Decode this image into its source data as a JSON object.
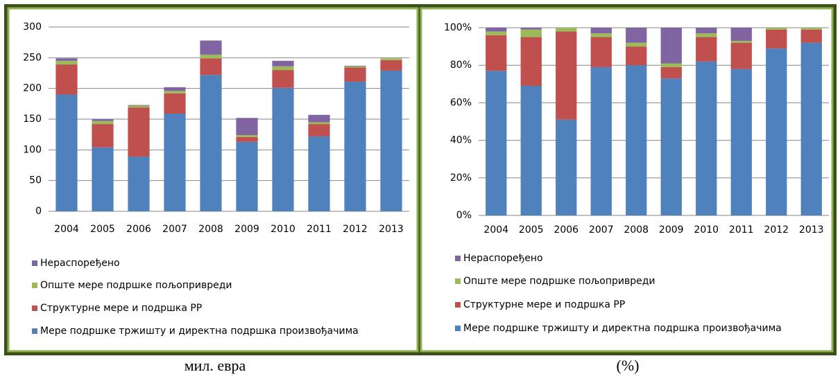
{
  "chart_data": [
    {
      "type": "bar",
      "stacked": true,
      "caption": "мил. евра",
      "categories": [
        "2004",
        "2005",
        "2006",
        "2007",
        "2008",
        "2009",
        "2010",
        "2011",
        "2012",
        "2013"
      ],
      "series": [
        {
          "name": "Мере подршке тржишту и директна подршка произвођачима",
          "color": "#4f81bd",
          "values": [
            190,
            104,
            89,
            159,
            222,
            113,
            201,
            122,
            211,
            229
          ]
        },
        {
          "name": "Структурне мере и подршка РР",
          "color": "#c0504d",
          "values": [
            49,
            38,
            80,
            33,
            27,
            8,
            29,
            20,
            23,
            17
          ]
        },
        {
          "name": "Опште мере подршке пољопривреди",
          "color": "#9bbb59",
          "values": [
            6,
            5,
            3,
            4,
            6,
            3,
            6,
            3,
            2,
            3
          ]
        },
        {
          "name": "Нераспоређено",
          "color": "#8064a2",
          "values": [
            4,
            3,
            1,
            6,
            23,
            28,
            9,
            12,
            1,
            0
          ]
        }
      ],
      "ylim": [
        0,
        300
      ],
      "yticks": [
        0,
        50,
        100,
        150,
        200,
        250,
        300
      ],
      "grid": true
    },
    {
      "type": "bar",
      "stacked": true,
      "caption": "(%)",
      "categories": [
        "2004",
        "2005",
        "2006",
        "2007",
        "2008",
        "2009",
        "2010",
        "2011",
        "2012",
        "2013"
      ],
      "series": [
        {
          "name": "Мере подршке тржишту и директна подршка произвођачима",
          "color": "#4f81bd",
          "values": [
            77,
            69,
            51,
            79,
            80,
            73,
            82,
            78,
            89,
            92
          ]
        },
        {
          "name": "Структурне мере и подршка РР",
          "color": "#c0504d",
          "values": [
            19,
            26,
            47,
            16,
            10,
            6,
            13,
            14,
            10,
            7
          ]
        },
        {
          "name": "Опште мере подршке пољопривреди",
          "color": "#9bbb59",
          "values": [
            2,
            4,
            2,
            2,
            2,
            2,
            2,
            1,
            1,
            1
          ]
        },
        {
          "name": "Нераспоређено",
          "color": "#8064a2",
          "values": [
            2,
            1,
            0,
            3,
            8,
            19,
            3,
            7,
            0,
            0
          ]
        }
      ],
      "ylim": [
        0,
        100
      ],
      "yticks": [
        {
          "value": 0,
          "label": "0%"
        },
        {
          "value": 20,
          "label": "20%"
        },
        {
          "value": 40,
          "label": "40%"
        },
        {
          "value": 60,
          "label": "60%"
        },
        {
          "value": 80,
          "label": "80%"
        },
        {
          "value": 100,
          "label": "100%"
        }
      ],
      "grid": true
    }
  ]
}
